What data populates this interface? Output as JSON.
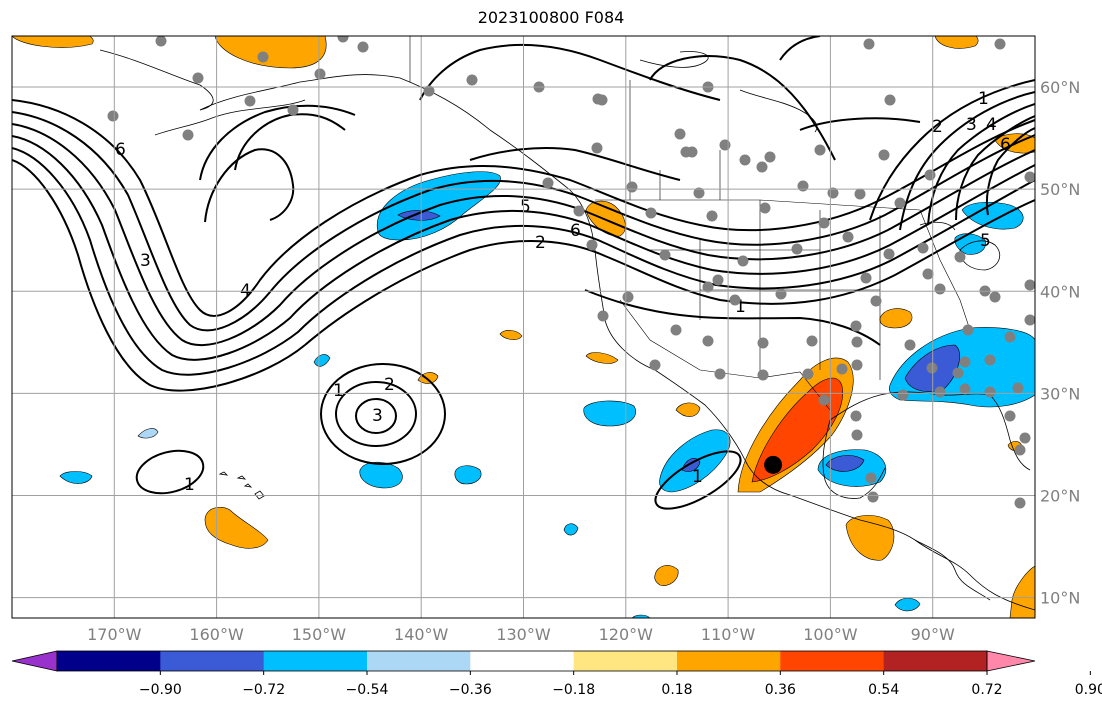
{
  "title": "2023100800 F084",
  "map": {
    "projection": "PlateCarree",
    "lon_range": [
      -180,
      -80
    ],
    "lat_range": [
      8,
      65
    ],
    "lon_ticks": [
      -170,
      -160,
      -150,
      -140,
      -130,
      -120,
      -110,
      -100,
      -90
    ],
    "lon_tick_labels": [
      "170°W",
      "160°W",
      "150°W",
      "140°W",
      "130°W",
      "120°W",
      "110°W",
      "100°W",
      "90°W"
    ],
    "lat_ticks": [
      10,
      20,
      30,
      40,
      50,
      60
    ],
    "lat_tick_labels": [
      "10°N",
      "20°N",
      "30°N",
      "40°N",
      "50°N",
      "60°N"
    ],
    "grid": true,
    "marker": {
      "lon": -105.6,
      "lat": 23.0,
      "label": "black-dot"
    },
    "contour_labels": [
      "1",
      "2",
      "3",
      "4",
      "5",
      "6"
    ]
  },
  "colorbar": {
    "orientation": "horizontal",
    "extend": "both",
    "colors": [
      "#9932cc",
      "#00008b",
      "#3b5bd6",
      "#00bfff",
      "#add8f5",
      "#ffffff",
      "#ffe680",
      "#ffa500",
      "#ff4500",
      "#b22222",
      "#ff88aa"
    ],
    "tick_labels": [
      "−0.90",
      "−0.72",
      "−0.54",
      "−0.36",
      "−0.18",
      "0.18",
      "0.36",
      "0.54",
      "0.72",
      "0.90"
    ]
  },
  "colors": {
    "grid": "#a0a0a0",
    "station": "#808080",
    "coast": "#000000"
  }
}
